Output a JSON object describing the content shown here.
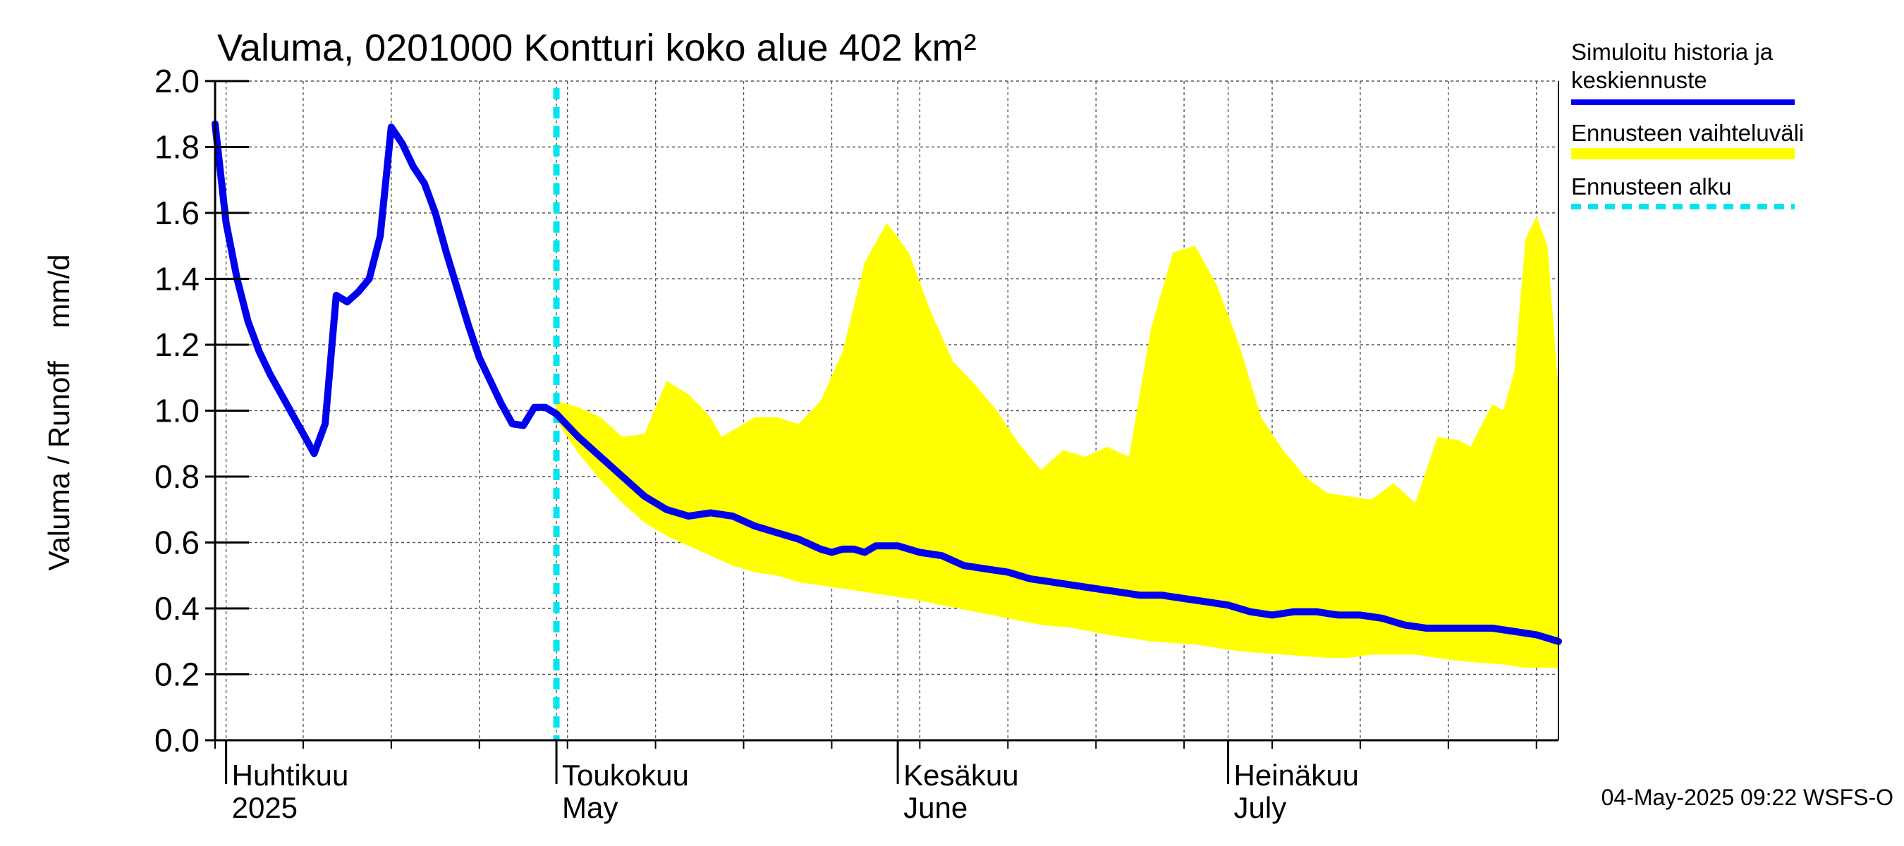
{
  "chart_data": {
    "type": "area",
    "title": "Valuma, 0201000 Kontturi koko alue 402 km²",
    "ylabel": "Valuma / Runoff    mm/d",
    "ylim": [
      0,
      2.0
    ],
    "yticks": [
      "0.0",
      "0.2",
      "0.4",
      "0.6",
      "0.8",
      "1.0",
      "1.2",
      "1.4",
      "1.6",
      "1.8",
      "2.0"
    ],
    "xlim": [
      "2025-03-31",
      "2025-07-31"
    ],
    "x_month_labels": [
      {
        "date": "2025-04-01",
        "fi": "Huhtikuu",
        "en": "2025"
      },
      {
        "date": "2025-05-01",
        "fi": "Toukokuu",
        "en": "May"
      },
      {
        "date": "2025-06-01",
        "fi": "Kesäkuu",
        "en": "June"
      },
      {
        "date": "2025-07-01",
        "fi": "Heinäkuu",
        "en": "July"
      }
    ],
    "forecast_start": "2025-05-01",
    "grid": true,
    "legend_position": "right",
    "legend": [
      {
        "label_line1": "Simuloitu historia ja",
        "label_line2": "keskiennuste",
        "color": "#0000ee"
      },
      {
        "label_line1": "Ennusteen vaihteluväli",
        "label_line2": "",
        "color": "#ffff00"
      },
      {
        "label_line1": "Ennusteen alku",
        "label_line2": "",
        "color": "#00e5ee"
      }
    ],
    "series": [
      {
        "name": "Simuloitu historia ja keskiennuste",
        "color": "#0000ee",
        "points": [
          [
            "2025-03-31",
            1.87
          ],
          [
            "2025-04-01",
            1.57
          ],
          [
            "2025-04-02",
            1.4
          ],
          [
            "2025-04-03",
            1.27
          ],
          [
            "2025-04-04",
            1.18
          ],
          [
            "2025-04-05",
            1.11
          ],
          [
            "2025-04-06",
            1.05
          ],
          [
            "2025-04-07",
            0.99
          ],
          [
            "2025-04-08",
            0.93
          ],
          [
            "2025-04-09",
            0.87
          ],
          [
            "2025-04-10",
            0.96
          ],
          [
            "2025-04-11",
            1.35
          ],
          [
            "2025-04-12",
            1.33
          ],
          [
            "2025-04-13",
            1.36
          ],
          [
            "2025-04-14",
            1.4
          ],
          [
            "2025-04-15",
            1.53
          ],
          [
            "2025-04-16",
            1.86
          ],
          [
            "2025-04-17",
            1.81
          ],
          [
            "2025-04-18",
            1.74
          ],
          [
            "2025-04-19",
            1.69
          ],
          [
            "2025-04-20",
            1.6
          ],
          [
            "2025-04-21",
            1.48
          ],
          [
            "2025-04-22",
            1.37
          ],
          [
            "2025-04-23",
            1.26
          ],
          [
            "2025-04-24",
            1.16
          ],
          [
            "2025-04-25",
            1.09
          ],
          [
            "2025-04-26",
            1.02
          ],
          [
            "2025-04-27",
            0.96
          ],
          [
            "2025-04-28",
            0.955
          ],
          [
            "2025-04-29",
            1.01
          ],
          [
            "2025-04-30",
            1.01
          ],
          [
            "2025-05-01",
            0.99
          ],
          [
            "2025-05-03",
            0.92
          ],
          [
            "2025-05-05",
            0.86
          ],
          [
            "2025-05-07",
            0.8
          ],
          [
            "2025-05-09",
            0.74
          ],
          [
            "2025-05-11",
            0.7
          ],
          [
            "2025-05-13",
            0.68
          ],
          [
            "2025-05-15",
            0.69
          ],
          [
            "2025-05-17",
            0.68
          ],
          [
            "2025-05-19",
            0.65
          ],
          [
            "2025-05-21",
            0.63
          ],
          [
            "2025-05-23",
            0.61
          ],
          [
            "2025-05-25",
            0.58
          ],
          [
            "2025-05-26",
            0.57
          ],
          [
            "2025-05-27",
            0.58
          ],
          [
            "2025-05-28",
            0.58
          ],
          [
            "2025-05-29",
            0.57
          ],
          [
            "2025-05-30",
            0.59
          ],
          [
            "2025-06-01",
            0.59
          ],
          [
            "2025-06-03",
            0.57
          ],
          [
            "2025-06-05",
            0.56
          ],
          [
            "2025-06-07",
            0.53
          ],
          [
            "2025-06-09",
            0.52
          ],
          [
            "2025-06-11",
            0.51
          ],
          [
            "2025-06-13",
            0.49
          ],
          [
            "2025-06-15",
            0.48
          ],
          [
            "2025-06-17",
            0.47
          ],
          [
            "2025-06-19",
            0.46
          ],
          [
            "2025-06-21",
            0.45
          ],
          [
            "2025-06-23",
            0.44
          ],
          [
            "2025-06-25",
            0.44
          ],
          [
            "2025-06-27",
            0.43
          ],
          [
            "2025-06-29",
            0.42
          ],
          [
            "2025-07-01",
            0.41
          ],
          [
            "2025-07-03",
            0.39
          ],
          [
            "2025-07-05",
            0.38
          ],
          [
            "2025-07-07",
            0.39
          ],
          [
            "2025-07-09",
            0.39
          ],
          [
            "2025-07-11",
            0.38
          ],
          [
            "2025-07-13",
            0.38
          ],
          [
            "2025-07-15",
            0.37
          ],
          [
            "2025-07-17",
            0.35
          ],
          [
            "2025-07-19",
            0.34
          ],
          [
            "2025-07-21",
            0.34
          ],
          [
            "2025-07-23",
            0.34
          ],
          [
            "2025-07-25",
            0.34
          ],
          [
            "2025-07-27",
            0.33
          ],
          [
            "2025-07-29",
            0.32
          ],
          [
            "2025-07-31",
            0.3
          ]
        ]
      },
      {
        "name": "Ennusteen vaihteluväli",
        "color": "#ffff00",
        "upper": [
          [
            "2025-05-01",
            1.03
          ],
          [
            "2025-05-03",
            1.01
          ],
          [
            "2025-05-05",
            0.98
          ],
          [
            "2025-05-07",
            0.92
          ],
          [
            "2025-05-09",
            0.93
          ],
          [
            "2025-05-11",
            1.09
          ],
          [
            "2025-05-13",
            1.05
          ],
          [
            "2025-05-15",
            0.98
          ],
          [
            "2025-05-16",
            0.92
          ],
          [
            "2025-05-19",
            0.98
          ],
          [
            "2025-05-21",
            0.98
          ],
          [
            "2025-05-23",
            0.96
          ],
          [
            "2025-05-25",
            1.03
          ],
          [
            "2025-05-27",
            1.18
          ],
          [
            "2025-05-29",
            1.45
          ],
          [
            "2025-05-31",
            1.57
          ],
          [
            "2025-06-02",
            1.48
          ],
          [
            "2025-06-04",
            1.3
          ],
          [
            "2025-06-06",
            1.15
          ],
          [
            "2025-06-08",
            1.08
          ],
          [
            "2025-06-10",
            1.0
          ],
          [
            "2025-06-12",
            0.9
          ],
          [
            "2025-06-14",
            0.82
          ],
          [
            "2025-06-16",
            0.88
          ],
          [
            "2025-06-18",
            0.86
          ],
          [
            "2025-06-20",
            0.89
          ],
          [
            "2025-06-22",
            0.86
          ],
          [
            "2025-06-24",
            1.25
          ],
          [
            "2025-06-26",
            1.48
          ],
          [
            "2025-06-28",
            1.5
          ],
          [
            "2025-06-30",
            1.38
          ],
          [
            "2025-07-02",
            1.2
          ],
          [
            "2025-07-04",
            0.98
          ],
          [
            "2025-07-06",
            0.88
          ],
          [
            "2025-07-08",
            0.8
          ],
          [
            "2025-07-10",
            0.75
          ],
          [
            "2025-07-12",
            0.74
          ],
          [
            "2025-07-14",
            0.73
          ],
          [
            "2025-07-16",
            0.78
          ],
          [
            "2025-07-18",
            0.72
          ],
          [
            "2025-07-20",
            0.92
          ],
          [
            "2025-07-22",
            0.91
          ],
          [
            "2025-07-23",
            0.89
          ],
          [
            "2025-07-25",
            1.02
          ],
          [
            "2025-07-26",
            1.0
          ],
          [
            "2025-07-27",
            1.12
          ],
          [
            "2025-07-28",
            1.52
          ],
          [
            "2025-07-29",
            1.59
          ],
          [
            "2025-07-30",
            1.5
          ],
          [
            "2025-07-31",
            1.06
          ]
        ],
        "lower": [
          [
            "2025-05-01",
            0.97
          ],
          [
            "2025-05-03",
            0.87
          ],
          [
            "2025-05-05",
            0.79
          ],
          [
            "2025-05-07",
            0.72
          ],
          [
            "2025-05-09",
            0.66
          ],
          [
            "2025-05-11",
            0.62
          ],
          [
            "2025-05-13",
            0.59
          ],
          [
            "2025-05-15",
            0.56
          ],
          [
            "2025-05-17",
            0.53
          ],
          [
            "2025-05-19",
            0.51
          ],
          [
            "2025-05-21",
            0.5
          ],
          [
            "2025-05-23",
            0.48
          ],
          [
            "2025-05-25",
            0.47
          ],
          [
            "2025-05-27",
            0.46
          ],
          [
            "2025-05-29",
            0.45
          ],
          [
            "2025-05-31",
            0.44
          ],
          [
            "2025-06-02",
            0.43
          ],
          [
            "2025-06-05",
            0.41
          ],
          [
            "2025-06-08",
            0.39
          ],
          [
            "2025-06-11",
            0.37
          ],
          [
            "2025-06-14",
            0.35
          ],
          [
            "2025-06-17",
            0.34
          ],
          [
            "2025-06-20",
            0.32
          ],
          [
            "2025-06-24",
            0.3
          ],
          [
            "2025-06-28",
            0.29
          ],
          [
            "2025-07-02",
            0.27
          ],
          [
            "2025-07-06",
            0.26
          ],
          [
            "2025-07-10",
            0.25
          ],
          [
            "2025-07-12",
            0.25
          ],
          [
            "2025-07-14",
            0.26
          ],
          [
            "2025-07-18",
            0.26
          ],
          [
            "2025-07-22",
            0.24
          ],
          [
            "2025-07-26",
            0.23
          ],
          [
            "2025-07-28",
            0.22
          ],
          [
            "2025-07-31",
            0.22
          ]
        ]
      },
      {
        "name": "Ennusteen alku",
        "color": "#00e5ee",
        "x": "2025-05-01"
      }
    ]
  },
  "footer": {
    "timestamp": "04-May-2025 09:22 WSFS-O"
  }
}
